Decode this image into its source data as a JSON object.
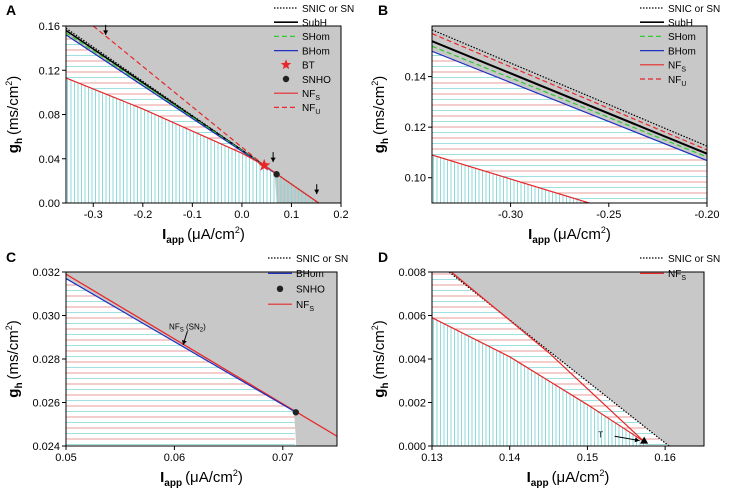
{
  "figure": {
    "colors": {
      "gray": "#c8c8c8",
      "cyan": "#7fd6d6",
      "hatch_red": "#e07a7a",
      "red": "#e8272a",
      "blue": "#1f2fbf",
      "green": "#2ecc2e",
      "black": "#000000"
    }
  },
  "chart_data": [
    {
      "panel": "A",
      "type": "line",
      "xlabel_main": "I",
      "xlabel_sub": "app",
      "xlabel_units": "(μA/cm",
      "xlabel_sup": "2",
      "xlabel_close": ")",
      "ylabel_main": "g",
      "ylabel_sub": "h",
      "ylabel_units": "(ms/cm",
      "ylabel_sup": "2",
      "ylabel_close": ")",
      "xlim": [
        -0.355,
        0.2
      ],
      "ylim": [
        0.0,
        0.16
      ],
      "xticks": [
        -0.3,
        -0.2,
        -0.1,
        0.0,
        0.1,
        0.2
      ],
      "xticklabels": [
        "-0.3",
        "-0.2",
        "-0.1",
        "0.0",
        "0.1",
        "0.2"
      ],
      "yticks": [
        0.0,
        0.04,
        0.08,
        0.12,
        0.16
      ],
      "yticklabels": [
        "0.00",
        "0.04",
        "0.08",
        "0.12",
        "0.16"
      ],
      "legend": [
        {
          "label": "SNIC or SN",
          "style": "dotted",
          "color": "#000000"
        },
        {
          "label": "SubH",
          "style": "solid",
          "color": "#000000"
        },
        {
          "label": "SHom",
          "style": "dashed",
          "color": "#2ecc2e"
        },
        {
          "label": "BHom",
          "style": "solid",
          "color": "#1f2fbf"
        },
        {
          "label": "BT",
          "style": "star",
          "color": "#e8272a"
        },
        {
          "label": "SNHO",
          "style": "dot",
          "color": "#222222"
        },
        {
          "label": "NF",
          "sub": "S",
          "style": "solid",
          "color": "#e8272a"
        },
        {
          "label": "NF",
          "sub": "U",
          "style": "dashed",
          "color": "#e8272a"
        }
      ],
      "series": [
        {
          "name": "SNIC or SN",
          "color": "#000000",
          "style": "dotted",
          "width": 1.2,
          "x": [
            -0.355,
            0.155
          ],
          "y": [
            0.158,
            0.0
          ]
        },
        {
          "name": "SubH",
          "color": "#000000",
          "style": "solid",
          "width": 1.5,
          "x": [
            -0.355,
            0.045
          ],
          "y": [
            0.156,
            0.034
          ]
        },
        {
          "name": "SHom",
          "color": "#2ecc2e",
          "style": "dashed",
          "width": 1.2,
          "x": [
            -0.355,
            0.045
          ],
          "y": [
            0.154,
            0.034
          ]
        },
        {
          "name": "BHom",
          "color": "#1f2fbf",
          "style": "solid",
          "width": 1.2,
          "x": [
            -0.355,
            0.07
          ],
          "y": [
            0.152,
            0.026
          ]
        },
        {
          "name": "NF_S",
          "color": "#e8272a",
          "style": "solid",
          "width": 1.2,
          "x": [
            -0.355,
            -0.2,
            0.0,
            0.045,
            0.155
          ],
          "y": [
            0.113,
            0.085,
            0.045,
            0.034,
            0.0
          ]
        },
        {
          "name": "NF_U",
          "color": "#e8272a",
          "style": "dashed",
          "width": 1.2,
          "x": [
            -0.3,
            0.045
          ],
          "y": [
            0.16,
            0.034
          ]
        }
      ],
      "hatch": {
        "vert_top": "NF_S",
        "horiz_top": "BHom"
      },
      "markers": [
        {
          "name": "BT",
          "shape": "star",
          "x": 0.045,
          "y": 0.034,
          "color": "#e8272a"
        },
        {
          "name": "SNHO",
          "shape": "dot",
          "x": 0.07,
          "y": 0.026,
          "color": "#222222"
        }
      ],
      "arrows": [
        {
          "x": -0.275,
          "y": 0.152
        },
        {
          "x": 0.063,
          "y": 0.037
        },
        {
          "x": 0.151,
          "y": 0.008
        }
      ]
    },
    {
      "panel": "B",
      "type": "line",
      "xlabel_main": "I",
      "xlabel_sub": "app",
      "xlabel_units": "(μA/cm",
      "xlabel_sup": "2",
      "xlabel_close": ")",
      "ylabel_main": "g",
      "ylabel_sub": "h",
      "ylabel_units": "(ms/cm",
      "ylabel_sup": "2",
      "ylabel_close": ")",
      "xlim": [
        -0.34,
        -0.2
      ],
      "ylim": [
        0.09,
        0.16
      ],
      "xticks": [
        -0.3,
        -0.25,
        -0.2
      ],
      "xticklabels": [
        "-0.30",
        "-0.25",
        "-0.20"
      ],
      "yticks": [
        0.1,
        0.12,
        0.14
      ],
      "yticklabels": [
        "0.10",
        "0.12",
        "0.14"
      ],
      "legend": [
        {
          "label": "SNIC or SN",
          "style": "dotted",
          "color": "#000000"
        },
        {
          "label": "SubH",
          "style": "solid",
          "color": "#000000"
        },
        {
          "label": "SHom",
          "style": "dashed",
          "color": "#2ecc2e"
        },
        {
          "label": "BHom",
          "style": "solid",
          "color": "#1f2fbf"
        },
        {
          "label": "NF",
          "sub": "S",
          "style": "solid",
          "color": "#e8272a"
        },
        {
          "label": "NF",
          "sub": "U",
          "style": "dashed",
          "color": "#e8272a"
        }
      ],
      "series": [
        {
          "name": "SNIC or SN",
          "color": "#000000",
          "style": "dotted",
          "width": 1.2,
          "x": [
            -0.34,
            -0.2
          ],
          "y": [
            0.1585,
            0.1125
          ]
        },
        {
          "name": "NF_U",
          "color": "#e8272a",
          "style": "dashed",
          "width": 1.2,
          "x": [
            -0.34,
            -0.2
          ],
          "y": [
            0.157,
            0.111
          ]
        },
        {
          "name": "SubH",
          "color": "#000000",
          "style": "solid",
          "width": 2.0,
          "x": [
            -0.34,
            -0.2
          ],
          "y": [
            0.154,
            0.1095
          ]
        },
        {
          "name": "SHom",
          "color": "#2ecc2e",
          "style": "dashed",
          "width": 1.2,
          "x": [
            -0.34,
            -0.2
          ],
          "y": [
            0.152,
            0.1082
          ]
        },
        {
          "name": "BHom",
          "color": "#1f2fbf",
          "style": "solid",
          "width": 1.2,
          "x": [
            -0.34,
            -0.2
          ],
          "y": [
            0.15,
            0.1068
          ]
        },
        {
          "name": "NF_S",
          "color": "#e8272a",
          "style": "solid",
          "width": 1.2,
          "x": [
            -0.34,
            -0.26
          ],
          "y": [
            0.109,
            0.09
          ]
        }
      ],
      "hatch": {
        "vert_top": "NF_S",
        "horiz_top": "BHom"
      },
      "markers": [],
      "arrows": []
    },
    {
      "panel": "C",
      "type": "line",
      "xlabel_main": "I",
      "xlabel_sub": "app",
      "xlabel_units": "(μA/cm",
      "xlabel_sup": "2",
      "xlabel_close": ")",
      "ylabel_main": "g",
      "ylabel_sub": "h",
      "ylabel_units": "(ms/cm",
      "ylabel_sup": "2",
      "ylabel_close": ")",
      "xlim": [
        0.05,
        0.075
      ],
      "ylim": [
        0.024,
        0.032
      ],
      "xticks": [
        0.05,
        0.06,
        0.07
      ],
      "xticklabels": [
        "0.05",
        "0.06",
        "0.07"
      ],
      "yticks": [
        0.024,
        0.026,
        0.028,
        0.03,
        0.032
      ],
      "yticklabels": [
        "0.024",
        "0.026",
        "0.028",
        "0.030",
        "0.032"
      ],
      "legend": [
        {
          "label": "SNIC or SN",
          "style": "dotted",
          "color": "#000000"
        },
        {
          "label": "BHom",
          "style": "solid",
          "color": "#1f2fbf"
        },
        {
          "label": "SNHO",
          "style": "dot",
          "color": "#222222"
        },
        {
          "label": "NF",
          "sub": "S",
          "style": "solid",
          "color": "#e8272a"
        }
      ],
      "series": [
        {
          "name": "NF_S",
          "color": "#e8272a",
          "style": "solid",
          "width": 1.3,
          "x": [
            0.05,
            0.075
          ],
          "y": [
            0.0319,
            0.02445
          ]
        },
        {
          "name": "BHom",
          "color": "#1f2fbf",
          "style": "solid",
          "width": 1.2,
          "x": [
            0.05,
            0.0712
          ],
          "y": [
            0.0317,
            0.02555
          ]
        }
      ],
      "hatch": {
        "vert_top": null,
        "horiz_top": "BHom"
      },
      "markers": [
        {
          "name": "SNHO",
          "shape": "dot",
          "x": 0.0712,
          "y": 0.02555,
          "color": "#222222"
        }
      ],
      "annotation": {
        "main": "NF",
        "sub": "S",
        "rest": " (SN",
        "sub2": "2",
        "close": ")",
        "x": 0.0612,
        "y": 0.02935
      },
      "arrows": [
        {
          "x": 0.0608,
          "y": 0.02865,
          "from_x": 0.0612,
          "from_y": 0.02928
        }
      ]
    },
    {
      "panel": "D",
      "type": "line",
      "xlabel_main": "I",
      "xlabel_sub": "app",
      "xlabel_units": "(μA/cm",
      "xlabel_sup": "2",
      "xlabel_close": ")",
      "ylabel_main": "g",
      "ylabel_sub": "h",
      "ylabel_units": "(ms/cm",
      "ylabel_sup": "2",
      "ylabel_close": ")",
      "xlim": [
        0.13,
        0.165
      ],
      "ylim": [
        0.0,
        0.008
      ],
      "xticks": [
        0.13,
        0.14,
        0.15,
        0.16
      ],
      "xticklabels": [
        "0.13",
        "0.14",
        "0.15",
        "0.16"
      ],
      "yticks": [
        0.0,
        0.002,
        0.004,
        0.006,
        0.008
      ],
      "yticklabels": [
        "0.000",
        "0.002",
        "0.004",
        "0.006",
        "0.008"
      ],
      "legend": [
        {
          "label": "SNIC or SN",
          "style": "dotted",
          "color": "#000000"
        },
        {
          "label": "NF",
          "sub": "S",
          "style": "solid",
          "color": "#e8272a"
        }
      ],
      "series": [
        {
          "name": "SNIC or SN",
          "color": "#000000",
          "style": "dotted",
          "width": 1.2,
          "x": [
            0.1322,
            0.1605
          ],
          "y": [
            0.008,
            0.0
          ]
        },
        {
          "name": "NF_S upper",
          "color": "#e8272a",
          "style": "solid",
          "width": 1.2,
          "x": [
            0.1325,
            0.145,
            0.1573
          ],
          "y": [
            0.008,
            0.0043,
            0.0002
          ]
        },
        {
          "name": "NF_S lower",
          "color": "#e8272a",
          "style": "solid",
          "width": 1.2,
          "x": [
            0.13,
            0.14,
            0.15,
            0.1573
          ],
          "y": [
            0.0059,
            0.0041,
            0.0019,
            0.0002
          ]
        }
      ],
      "hatch": {
        "vert_top": "NF_S lower",
        "horiz_top": "SNIC or SN"
      },
      "markers": [
        {
          "name": "T",
          "shape": "triangle",
          "x": 0.1573,
          "y": 0.0002,
          "color": "#000000"
        }
      ],
      "annotation": {
        "main": "T",
        "x": 0.1517,
        "y": 0.0004
      },
      "arrows": [
        {
          "x": 0.1567,
          "y": 0.00025,
          "from_x": 0.1535,
          "from_y": 0.00045
        }
      ]
    }
  ]
}
